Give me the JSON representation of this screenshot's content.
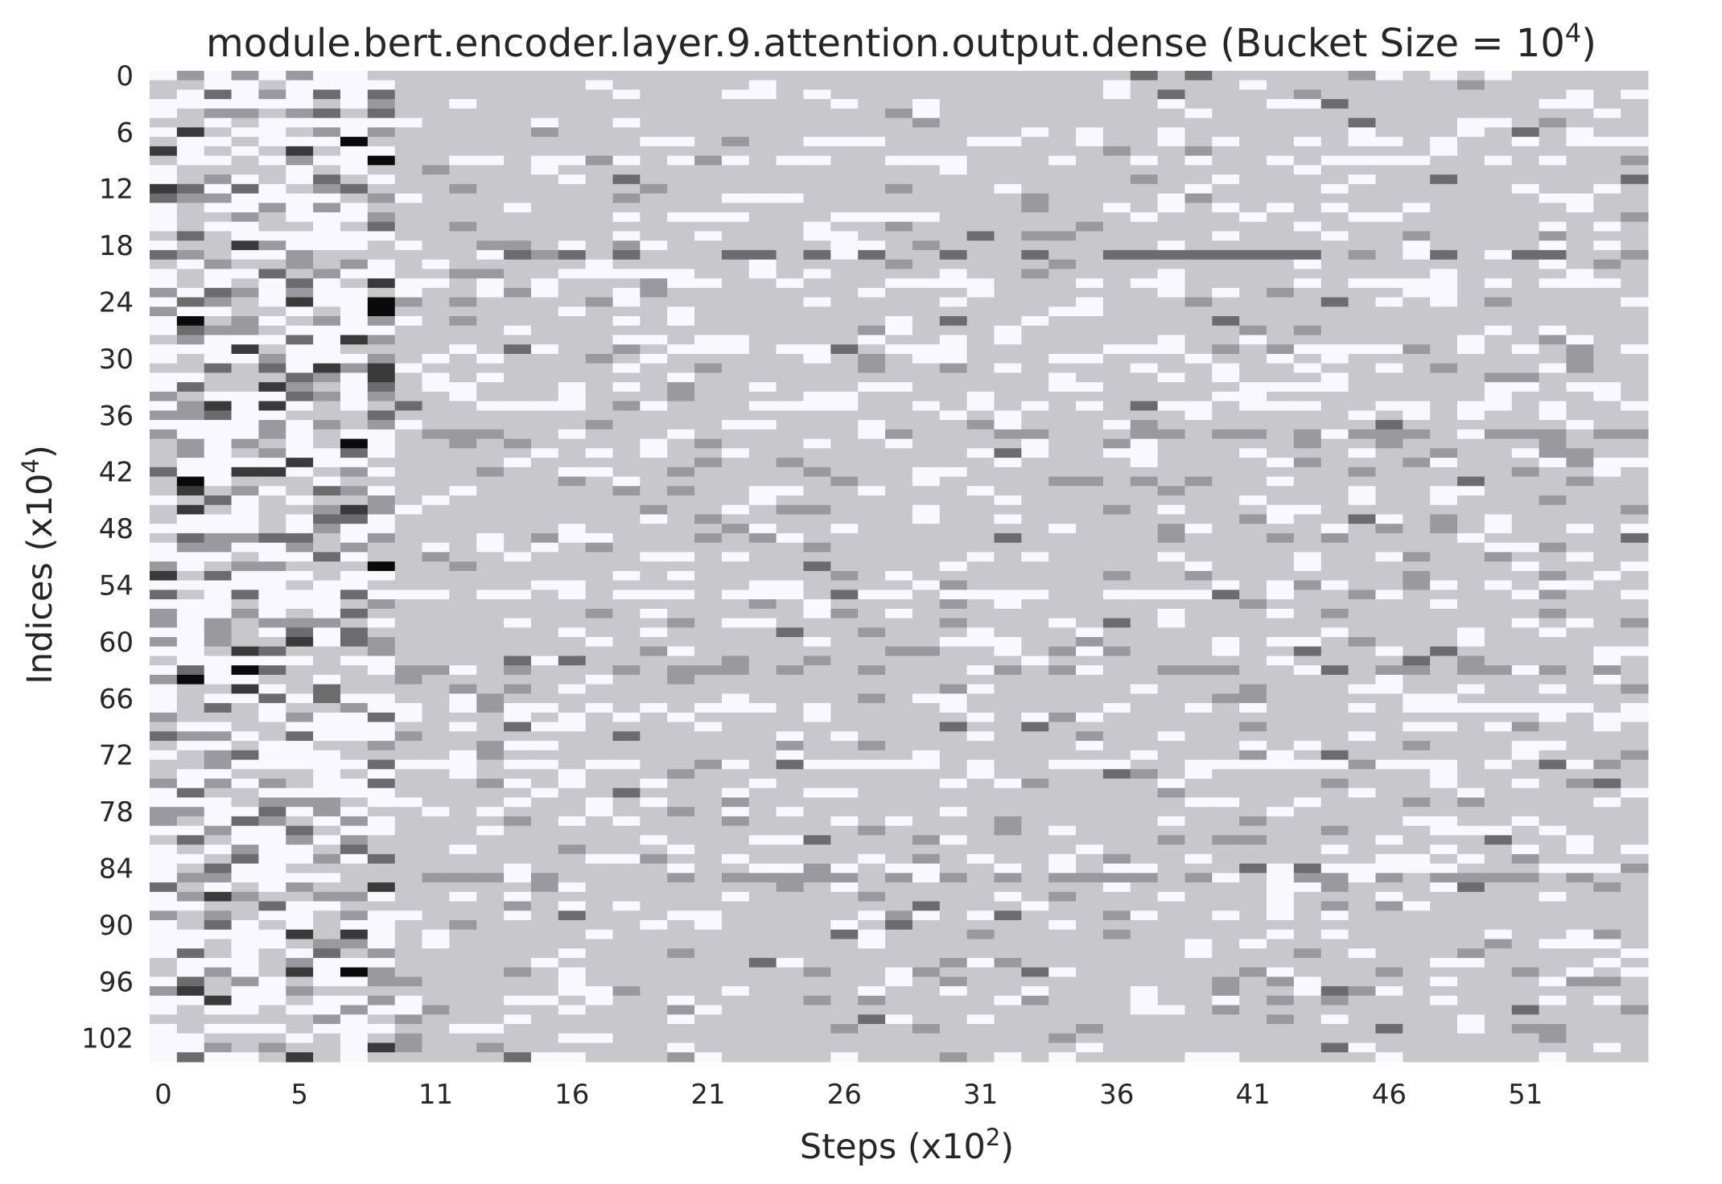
{
  "chart_data": {
    "type": "heatmap",
    "title_main": "module.bert.encoder.layer.9.attention.output.dense (Bucket Size = 10",
    "title_sup": "4",
    "title_close": ")",
    "xlabel_main": "Steps (x10",
    "xlabel_sup": "2",
    "xlabel_close": ")",
    "ylabel_main": "Indices (x10",
    "ylabel_sup": "4",
    "ylabel_close": ")",
    "x_ticks": [
      "0",
      "5",
      "11",
      "16",
      "21",
      "26",
      "31",
      "36",
      "41",
      "46",
      "51"
    ],
    "x_tick_index": [
      0,
      5,
      10,
      15,
      20,
      25,
      30,
      35,
      40,
      45,
      50
    ],
    "y_ticks": [
      "0",
      "6",
      "12",
      "18",
      "24",
      "30",
      "36",
      "42",
      "48",
      "54",
      "60",
      "66",
      "72",
      "78",
      "84",
      "90",
      "96",
      "102"
    ],
    "y_tick_index": [
      0,
      6,
      12,
      18,
      24,
      30,
      36,
      42,
      48,
      54,
      60,
      66,
      72,
      78,
      84,
      90,
      96,
      102
    ],
    "n_cols": 55,
    "n_rows": 105,
    "grid": false,
    "legend": "none",
    "colormap": {
      "0": "#f8f8fe",
      "1": "#c8c8cc",
      "2": "#9a9a9e",
      "3": "#6c6c6e",
      "4": "#3a3a3a",
      "5": "#0a0a0a"
    },
    "value_levels": 6,
    "note_data": "Cell intensity levels 0 (light) to 5 (dark), row by row"
  }
}
